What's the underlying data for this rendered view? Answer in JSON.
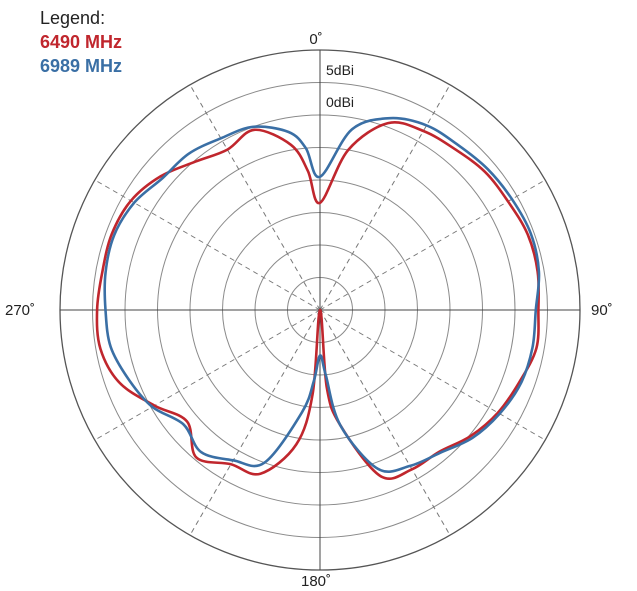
{
  "legend": {
    "title": "Legend:",
    "entries": [
      {
        "label": "6490 MHz",
        "color": "#c0262d"
      },
      {
        "label": "6989 MHz",
        "color": "#3a6fa5"
      }
    ]
  },
  "chart_data": {
    "type": "line",
    "subtype": "polar",
    "title": "",
    "angle_unit": "degrees",
    "angle_direction": "clockwise, 0 at top",
    "angle_labels": [
      {
        "angle": 0,
        "text": "0˚"
      },
      {
        "angle": 90,
        "text": "90˚"
      },
      {
        "angle": 180,
        "text": "180˚"
      },
      {
        "angle": 270,
        "text": "270˚"
      }
    ],
    "radial_labels": [
      {
        "value": 5,
        "text": "5dBi"
      },
      {
        "value": 0,
        "text": "0dBi"
      }
    ],
    "radial_unit": "dBi",
    "radial_range": [
      -30,
      10
    ],
    "radial_grid_step": 5,
    "angular_grid_step": 30,
    "grid": true,
    "legend_position": "top-left",
    "series": [
      {
        "name": "6490 MHz",
        "color": "#c0262d",
        "angles": [
          0,
          10,
          20,
          30,
          40,
          50,
          60,
          70,
          80,
          90,
          100,
          110,
          120,
          130,
          140,
          150,
          160,
          170,
          175,
          180,
          185,
          190,
          200,
          210,
          220,
          230,
          240,
          250,
          260,
          270,
          280,
          290,
          300,
          310,
          320,
          330,
          340,
          350,
          355
        ],
        "values": [
          -13.5,
          -5.0,
          0.6,
          1.8,
          2.3,
          3.1,
          3.4,
          4.0,
          4.0,
          3.6,
          3.8,
          2.6,
          1.6,
          0.2,
          -1.5,
          -1.7,
          -2.8,
          -12,
          -18,
          -30,
          -17,
          -9,
          -3.2,
          -2.6,
          -0.4,
          -3.3,
          -0.6,
          2.8,
          4.3,
          4.3,
          4.0,
          4.1,
          3.6,
          2.0,
          -0.2,
          -1.5,
          -0.5,
          -4.2,
          -8.5
        ]
      },
      {
        "name": "6989 MHz",
        "color": "#3a6fa5",
        "angles": [
          0,
          10,
          20,
          30,
          40,
          50,
          60,
          70,
          80,
          90,
          100,
          110,
          120,
          130,
          140,
          150,
          160,
          170,
          175,
          180,
          185,
          190,
          200,
          210,
          220,
          230,
          240,
          250,
          260,
          270,
          280,
          290,
          300,
          310,
          320,
          330,
          340,
          350,
          355
        ],
        "values": [
          -9.5,
          -1.8,
          1.4,
          2.8,
          3.1,
          3.7,
          4.1,
          4.5,
          4.2,
          3.2,
          3.2,
          2.9,
          1.9,
          0.6,
          -1.3,
          -2.3,
          -4.0,
          -12,
          -20,
          -23,
          -19,
          -14,
          -5.0,
          -3.3,
          -1.5,
          -2.6,
          -0.2,
          1.3,
          2.7,
          3.0,
          3.5,
          3.7,
          3.0,
          1.6,
          1.4,
          0.5,
          0.0,
          -2.2,
          -5.0
        ]
      }
    ]
  }
}
